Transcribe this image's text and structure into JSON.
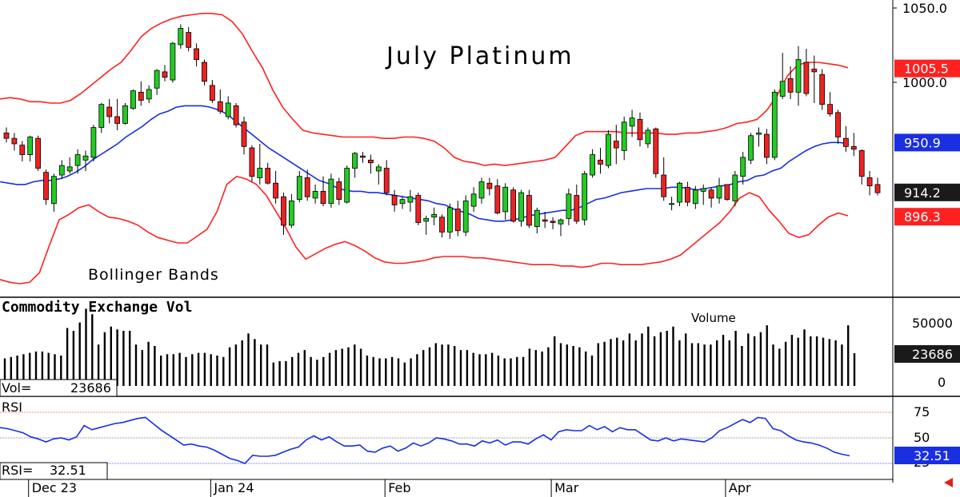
{
  "title": "July Platinum",
  "colors": {
    "bollinger": "#ff2020",
    "sma": "#1a2fe0",
    "rsi": "#1a2fe0",
    "up_candle": "#22cc22",
    "down_candle": "#ee2222",
    "volume": "#000000",
    "up_badge": "#ff2020",
    "mid_badge": "#1a2fe0",
    "last_badge": "#1a1a1a"
  },
  "price_panel": {
    "overlay_label": "Bollinger Bands",
    "ylim": [
      837,
      1050
    ],
    "y_ticks": [
      "1050.0",
      "1000.0",
      "896.3"
    ],
    "badges": [
      {
        "label": "1005.5",
        "value": 1005.5,
        "color": "up_badge"
      },
      {
        "label": "950.9",
        "value": 950.9,
        "color": "mid_badge"
      },
      {
        "label": "914.2",
        "value": 914.2,
        "color": "last_badge"
      },
      {
        "label": "896.3",
        "value": 896.3,
        "color": "up_badge"
      }
    ]
  },
  "volume_panel": {
    "title": "Commodity Exchange Vol",
    "series_label": "Volume",
    "readout_label": "Vol=",
    "readout_value": "23686",
    "badge": "23686",
    "ticks": [
      "50000",
      "0"
    ]
  },
  "rsi_panel": {
    "title": "RSI",
    "readout_label": "RSI=",
    "readout_value": "32.51",
    "badge": "32.51",
    "ticks": [
      "75",
      "50",
      "25"
    ],
    "overbought": 75,
    "oversold": 25
  },
  "x_axis": {
    "labels": [
      {
        "label": "Dec 23",
        "index": 3
      },
      {
        "label": "Jan 24",
        "index": 26
      },
      {
        "label": "Feb",
        "index": 48
      },
      {
        "label": "Mar",
        "index": 69
      },
      {
        "label": "Apr",
        "index": 91
      }
    ]
  },
  "chart_data": {
    "type": "candlestick",
    "title": "July Platinum",
    "ylim": [
      837,
      1050
    ],
    "candles": [
      [
        958,
        962,
        951,
        954
      ],
      [
        954,
        958,
        945,
        950
      ],
      [
        949,
        952,
        937,
        942
      ],
      [
        942,
        956,
        937,
        955
      ],
      [
        954,
        956,
        930,
        932
      ],
      [
        929,
        931,
        905,
        909
      ],
      [
        906,
        928,
        900,
        926
      ],
      [
        927,
        938,
        924,
        934
      ],
      [
        930,
        940,
        928,
        933
      ],
      [
        934,
        946,
        928,
        942
      ],
      [
        938,
        945,
        930,
        941
      ],
      [
        940,
        964,
        937,
        962
      ],
      [
        962,
        980,
        958,
        979
      ],
      [
        977,
        983,
        965,
        970
      ],
      [
        970,
        983,
        960,
        965
      ],
      [
        965,
        980,
        964,
        978
      ],
      [
        976,
        990,
        975,
        989
      ],
      [
        988,
        996,
        978,
        982
      ],
      [
        983,
        993,
        980,
        990
      ],
      [
        991,
        1005,
        986,
        1004
      ],
      [
        1003,
        1008,
        996,
        999
      ],
      [
        997,
        1025,
        995,
        1024
      ],
      [
        1023,
        1038,
        1020,
        1035
      ],
      [
        1032,
        1036,
        1018,
        1021
      ],
      [
        1020,
        1024,
        1007,
        1012
      ],
      [
        1010,
        1012,
        993,
        996
      ],
      [
        993,
        997,
        980,
        982
      ],
      [
        981,
        990,
        972,
        974
      ],
      [
        970,
        985,
        968,
        980
      ],
      [
        978,
        980,
        962,
        964
      ],
      [
        966,
        970,
        942,
        948
      ],
      [
        947,
        949,
        922,
        926
      ],
      [
        925,
        950,
        920,
        932
      ],
      [
        932,
        936,
        920,
        921
      ],
      [
        921,
        930,
        906,
        910
      ],
      [
        911,
        914,
        883,
        890
      ],
      [
        890,
        913,
        888,
        908
      ],
      [
        909,
        930,
        907,
        926
      ],
      [
        925,
        931,
        908,
        911
      ],
      [
        910,
        920,
        906,
        915
      ],
      [
        915,
        926,
        904,
        906
      ],
      [
        906,
        928,
        903,
        924
      ],
      [
        922,
        925,
        905,
        909
      ],
      [
        907,
        934,
        906,
        932
      ],
      [
        932,
        944,
        925,
        943
      ],
      [
        941,
        944,
        936,
        940
      ],
      [
        938,
        942,
        928,
        936
      ],
      [
        930,
        935,
        920,
        933
      ],
      [
        932,
        938,
        912,
        914
      ],
      [
        912,
        916,
        900,
        905
      ],
      [
        906,
        911,
        902,
        909
      ],
      [
        907,
        916,
        900,
        911
      ],
      [
        912,
        914,
        890,
        892
      ],
      [
        893,
        897,
        883,
        895
      ],
      [
        896,
        903,
        890,
        898
      ],
      [
        896,
        898,
        881,
        885
      ],
      [
        885,
        906,
        880,
        903
      ],
      [
        902,
        908,
        882,
        886
      ],
      [
        885,
        912,
        882,
        908
      ],
      [
        904,
        918,
        900,
        913
      ],
      [
        910,
        925,
        906,
        922
      ],
      [
        921,
        925,
        912,
        917
      ],
      [
        919,
        924,
        898,
        899
      ],
      [
        900,
        921,
        894,
        918
      ],
      [
        916,
        918,
        892,
        893
      ],
      [
        893,
        916,
        889,
        914
      ],
      [
        912,
        916,
        888,
        890
      ],
      [
        889,
        903,
        884,
        901
      ],
      [
        894,
        900,
        888,
        893
      ],
      [
        893,
        896,
        887,
        892
      ],
      [
        891,
        895,
        882,
        894
      ],
      [
        895,
        917,
        890,
        913
      ],
      [
        912,
        920,
        891,
        893
      ],
      [
        894,
        930,
        890,
        928
      ],
      [
        927,
        946,
        925,
        942
      ],
      [
        938,
        947,
        928,
        935
      ],
      [
        934,
        960,
        932,
        957
      ],
      [
        952,
        964,
        935,
        947
      ],
      [
        945,
        970,
        938,
        966
      ],
      [
        963,
        975,
        955,
        969
      ],
      [
        968,
        973,
        948,
        953
      ],
      [
        950,
        962,
        947,
        960
      ],
      [
        961,
        962,
        925,
        928
      ],
      [
        927,
        940,
        908,
        911
      ],
      [
        906,
        911,
        901,
        906
      ],
      [
        907,
        922,
        904,
        921
      ],
      [
        918,
        922,
        904,
        907
      ],
      [
        906,
        919,
        902,
        916
      ],
      [
        915,
        920,
        905,
        917
      ],
      [
        916,
        918,
        903,
        910
      ],
      [
        910,
        925,
        906,
        919
      ],
      [
        920,
        920,
        908,
        909
      ],
      [
        908,
        930,
        904,
        927
      ],
      [
        926,
        944,
        920,
        940
      ],
      [
        938,
        958,
        935,
        956
      ],
      [
        957,
        962,
        948,
        958
      ],
      [
        957,
        961,
        935,
        940
      ],
      [
        940,
        990,
        938,
        988
      ],
      [
        985,
        1017,
        983,
        996
      ],
      [
        998,
        1007,
        983,
        988
      ],
      [
        988,
        1022,
        978,
        1012
      ],
      [
        1010,
        1020,
        985,
        987
      ],
      [
        1005,
        1015,
        980,
        1003
      ],
      [
        1001,
        1005,
        975,
        979
      ],
      [
        979,
        988,
        970,
        972
      ],
      [
        973,
        975,
        950,
        955
      ],
      [
        954,
        963,
        944,
        948
      ],
      [
        948,
        958,
        941,
        946
      ],
      [
        945,
        946,
        920,
        926
      ],
      [
        925,
        930,
        912,
        919
      ],
      [
        920,
        925,
        912,
        914
      ]
    ],
    "sma20": [
      922,
      921,
      920,
      920,
      922,
      923,
      923,
      924,
      926,
      929,
      933,
      938,
      942,
      946,
      950,
      955,
      959,
      963,
      968,
      972,
      974,
      977,
      978,
      978,
      978,
      977,
      975,
      972,
      967,
      962,
      957,
      952,
      947,
      943,
      939,
      935,
      931,
      927,
      923,
      921,
      918,
      916,
      915,
      915,
      914,
      914,
      913,
      912,
      911,
      910,
      909,
      908,
      906,
      905,
      902,
      900,
      898,
      895,
      894,
      893,
      893,
      894,
      895,
      897,
      898,
      899,
      900,
      901,
      901,
      903,
      906,
      909,
      910,
      912,
      914,
      915,
      916,
      917,
      917,
      917,
      918,
      918,
      917,
      916,
      917,
      918,
      919,
      920,
      922,
      923,
      926,
      927,
      930,
      932,
      937,
      941,
      945,
      948,
      950,
      951,
      951,
      950
    ],
    "bollinger_upper": [
      983,
      984,
      983,
      981,
      981,
      980,
      980,
      982,
      987,
      993,
      999,
      1005,
      1010,
      1019,
      1029,
      1035,
      1039,
      1042,
      1044,
      1045,
      1046,
      1046,
      1045,
      1040,
      1031,
      1018,
      1006,
      990,
      977,
      968,
      960,
      958,
      957,
      956,
      955,
      955,
      955,
      955,
      954,
      954,
      955,
      955,
      954,
      952,
      947,
      940,
      937,
      936,
      934,
      935,
      934,
      935,
      936,
      937,
      938,
      940,
      948,
      956,
      959,
      959,
      959,
      959,
      958,
      958,
      958,
      958,
      957,
      957,
      958,
      958,
      959,
      960,
      962,
      965,
      966,
      968,
      975,
      986,
      1000,
      1008,
      1010,
      1010,
      1009,
      1008,
      1006
    ],
    "bollinger_lower": [
      850,
      848,
      847,
      848,
      855,
      875,
      894,
      898,
      903,
      905,
      900,
      896,
      895,
      893,
      890,
      885,
      881,
      879,
      877,
      877,
      882,
      887,
      900,
      920,
      926,
      924,
      920,
      912,
      900,
      888,
      874,
      865,
      869,
      873,
      876,
      878,
      875,
      871,
      866,
      863,
      862,
      862,
      863,
      864,
      866,
      867,
      867,
      867,
      866,
      866,
      865,
      864,
      863,
      862,
      861,
      861,
      861,
      860,
      860,
      859,
      860,
      862,
      862,
      861,
      861,
      861,
      862,
      863,
      865,
      868,
      874,
      880,
      886,
      892,
      900,
      910,
      914,
      911,
      901,
      893,
      884,
      881,
      883,
      890,
      896,
      899,
      897
    ],
    "volume": [
      20000,
      21000,
      22000,
      23000,
      24000,
      25000,
      25000,
      24000,
      23000,
      22000,
      42000,
      40000,
      46000,
      56000,
      52000,
      30000,
      39000,
      43000,
      41000,
      40000,
      40000,
      30000,
      26000,
      32000,
      29000,
      22000,
      23000,
      23000,
      24000,
      21000,
      23000,
      24000,
      24000,
      23000,
      22000,
      21000,
      28000,
      30000,
      33000,
      38000,
      34000,
      30000,
      30000,
      17000,
      18000,
      18000,
      21000,
      24000,
      26000,
      21000,
      19000,
      21000,
      24000,
      26000,
      27000,
      28000,
      30000,
      27000,
      22000,
      21000,
      20000,
      20000,
      21000,
      20000,
      17000,
      20000,
      23000,
      26000,
      28000,
      31000,
      30000,
      30000,
      29000,
      26000,
      26000,
      24000,
      23000,
      23000,
      24000,
      22000,
      20000,
      20000,
      21000,
      21000,
      27000,
      26000,
      25000,
      28000,
      36000,
      31000,
      30000,
      29000,
      28000,
      25000,
      22000,
      31000,
      32000,
      34000,
      35000,
      33000,
      38000,
      33000,
      38000,
      43000,
      36000,
      39000,
      40000,
      43000,
      33000,
      38000,
      31000,
      31000,
      30000,
      30000,
      33000,
      37000,
      33000,
      40000,
      29000,
      38000,
      36000,
      39000,
      44000,
      30000,
      27000,
      32000,
      37000,
      35000,
      41000,
      36000,
      36000,
      35000,
      34000,
      33000,
      30000,
      44000,
      23686
    ],
    "rsi": [
      60,
      59,
      57,
      55,
      51,
      49,
      46,
      49,
      50,
      48,
      51,
      62,
      58,
      60,
      62,
      64,
      65,
      67,
      69,
      70,
      64,
      58,
      53,
      48,
      43,
      44,
      42,
      41,
      38,
      34,
      30,
      28,
      25,
      33,
      32,
      32,
      33,
      36,
      39,
      41,
      48,
      52,
      48,
      51,
      46,
      42,
      42,
      43,
      37,
      36,
      40,
      42,
      37,
      40,
      45,
      42,
      45,
      50,
      49,
      47,
      44,
      44,
      42,
      47,
      45,
      48,
      43,
      46,
      46,
      44,
      49,
      53,
      48,
      56,
      58,
      57,
      57,
      62,
      58,
      61,
      56,
      60,
      58,
      58,
      53,
      48,
      47,
      50,
      47,
      49,
      48,
      47,
      46,
      50,
      57,
      60,
      64,
      68,
      65,
      70,
      69,
      59,
      57,
      52,
      48,
      46,
      45,
      43,
      40,
      36,
      34,
      32.51
    ]
  }
}
